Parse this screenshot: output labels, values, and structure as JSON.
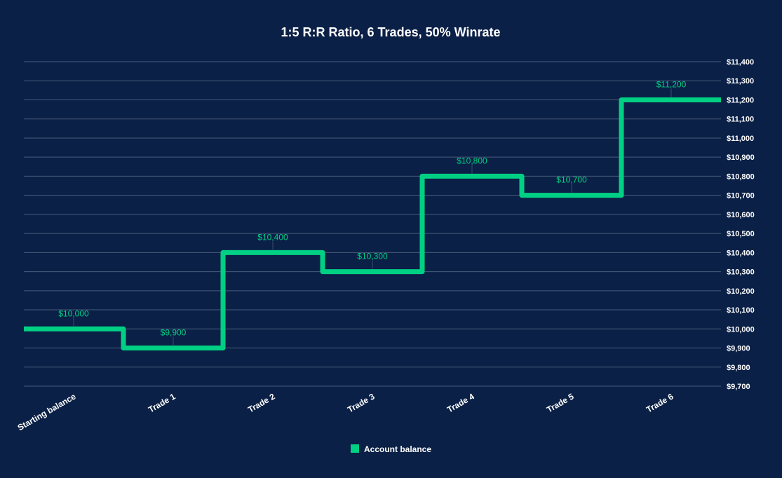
{
  "chart_data": {
    "type": "line",
    "step": true,
    "title": "1:5 R:R Ratio, 6 Trades, 50% Winrate",
    "categories": [
      "Starting balance",
      "Trade 1",
      "Trade 2",
      "Trade 3",
      "Trade 4",
      "Trade 5",
      "Trade 6"
    ],
    "series": [
      {
        "name": "Account balance",
        "values": [
          10000,
          9900,
          10400,
          10300,
          10800,
          10700,
          11200
        ],
        "color": "#00d084"
      }
    ],
    "data_labels": [
      "$10,000",
      "$9,900",
      "$10,400",
      "$10,300",
      "$10,800",
      "$10,700",
      "$11,200"
    ],
    "ylim": [
      9700,
      11400
    ],
    "y_ticks": [
      9700,
      9800,
      9900,
      10000,
      10100,
      10200,
      10300,
      10400,
      10500,
      10600,
      10700,
      10800,
      10900,
      11000,
      11100,
      11200,
      11300,
      11400
    ],
    "y_tick_labels": [
      "$9,700",
      "$9,800",
      "$9,900",
      "$10,000",
      "$10,100",
      "$10,200",
      "$10,300",
      "$10,400",
      "$10,500",
      "$10,600",
      "$10,700",
      "$10,800",
      "$10,900",
      "$11,000",
      "$11,100",
      "$11,200",
      "$11,300",
      "$11,400"
    ],
    "y_axis_side": "right",
    "grid": true,
    "legend": "bottom",
    "background": "#0b2046"
  }
}
